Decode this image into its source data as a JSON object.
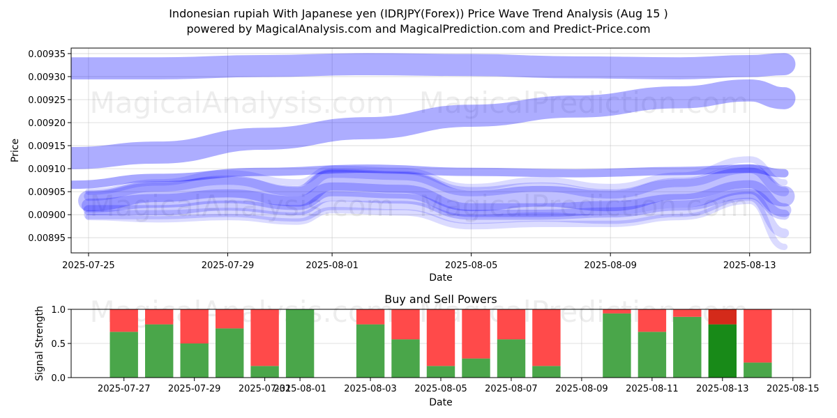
{
  "title_line1": "Indonesian rupiah With Japanese yen (IDRJPY(Forex)) Price Wave Trend Analysis (Aug 15 )",
  "title_line2": "powered by MagicalAnalysis.com and MagicalPrediction.com and Predict-Price.com",
  "watermarks": [
    "MagicalAnalysis.com",
    "MagicalPrediction.com"
  ],
  "colors": {
    "wave": "#0000ff",
    "buy": "#4aa64a",
    "sell": "#ff4a4a",
    "buy_strong": "#188a18",
    "sell_strong": "#d42a1a"
  },
  "chart_data": [
    {
      "type": "area",
      "title": "",
      "xlabel": "Date",
      "ylabel": "Price",
      "xlim": [
        "2025-07-24T12:00",
        "2025-08-14T18:00"
      ],
      "ylim": [
        0.008917,
        0.009362
      ],
      "x_ticks": [
        "2025-07-25",
        "2025-07-29",
        "2025-08-01",
        "2025-08-05",
        "2025-08-09",
        "2025-08-13"
      ],
      "y_ticks": [
        0.00895,
        0.009,
        0.00905,
        0.0091,
        0.00915,
        0.0092,
        0.00925,
        0.0093,
        0.00935
      ],
      "grid": true,
      "bands": [
        {
          "x": [
            "2025-07-24T12:00",
            "2025-07-27",
            "2025-07-30",
            "2025-08-02",
            "2025-08-05",
            "2025-08-08",
            "2025-08-11",
            "2025-08-13",
            "2025-08-14T00:00"
          ],
          "y": [
            0.009318,
            0.009318,
            0.009323,
            0.009327,
            0.009325,
            0.00932,
            0.009318,
            0.009323,
            0.009327
          ],
          "width": 4.8e-05,
          "opacity": 0.32
        },
        {
          "x": [
            "2025-07-24T12:00",
            "2025-07-27",
            "2025-07-30",
            "2025-08-02",
            "2025-08-05",
            "2025-08-08",
            "2025-08-11",
            "2025-08-13",
            "2025-08-14T00:00"
          ],
          "y": [
            0.009123,
            0.009135,
            0.009165,
            0.009188,
            0.009215,
            0.009235,
            0.009255,
            0.00927,
            0.009253
          ],
          "width": 4.8e-05,
          "opacity": 0.32
        },
        {
          "x": [
            "2025-07-24T12:00",
            "2025-07-27",
            "2025-07-30",
            "2025-08-02",
            "2025-08-05",
            "2025-08-08",
            "2025-08-11",
            "2025-08-13",
            "2025-08-14T00:00"
          ],
          "y": [
            0.009065,
            0.00908,
            0.009093,
            0.0091,
            0.009093,
            0.00909,
            0.009095,
            0.0091,
            0.00909
          ],
          "width": 1.8e-05,
          "opacity": 0.34
        },
        {
          "x": [
            "2025-07-25",
            "2025-07-27",
            "2025-07-29",
            "2025-07-31",
            "2025-08-01",
            "2025-08-03",
            "2025-08-05",
            "2025-08-07",
            "2025-08-09",
            "2025-08-11",
            "2025-08-13",
            "2025-08-14T00:00"
          ],
          "y": [
            0.00903,
            0.00905,
            0.00906,
            0.00904,
            0.009075,
            0.00907,
            0.00903,
            0.00904,
            0.00903,
            0.009055,
            0.00908,
            0.00904
          ],
          "width": 4.5e-05,
          "opacity": 0.25
        },
        {
          "x": [
            "2025-07-25",
            "2025-07-27",
            "2025-07-29",
            "2025-07-31",
            "2025-08-01",
            "2025-08-03",
            "2025-08-05",
            "2025-08-07",
            "2025-08-09",
            "2025-08-11",
            "2025-08-13",
            "2025-08-14T00:00"
          ],
          "y": [
            0.00902,
            0.00903,
            0.00904,
            0.009025,
            0.009055,
            0.00905,
            0.00901,
            0.00901,
            0.009015,
            0.00903,
            0.00906,
            0.00901
          ],
          "width": 3e-05,
          "opacity": 0.22
        },
        {
          "x": [
            "2025-07-25",
            "2025-07-27",
            "2025-07-29",
            "2025-07-31",
            "2025-08-01",
            "2025-08-03",
            "2025-08-05",
            "2025-08-07",
            "2025-08-09",
            "2025-08-11",
            "2025-08-13",
            "2025-08-14T00:00"
          ],
          "y": [
            0.00901,
            0.00901,
            0.00902,
            0.00901,
            0.00904,
            0.009035,
            0.009,
            0.009,
            0.009005,
            0.00902,
            0.009045,
            0.009
          ],
          "width": 2.2e-05,
          "opacity": 0.2
        },
        {
          "x": [
            "2025-07-25",
            "2025-07-27",
            "2025-07-29",
            "2025-07-31",
            "2025-08-01",
            "2025-08-03",
            "2025-08-05",
            "2025-08-07",
            "2025-08-09",
            "2025-08-11",
            "2025-08-13",
            "2025-08-14T00:00"
          ],
          "y": [
            0.00904,
            0.00906,
            0.009075,
            0.00905,
            0.00909,
            0.009085,
            0.00905,
            0.00906,
            0.009045,
            0.00907,
            0.0091,
            0.00905
          ],
          "width": 2e-05,
          "opacity": 0.18
        },
        {
          "x": [
            "2025-07-25",
            "2025-07-27",
            "2025-07-29",
            "2025-07-31",
            "2025-08-01",
            "2025-08-03",
            "2025-08-05",
            "2025-08-07",
            "2025-08-09",
            "2025-08-11",
            "2025-08-13",
            "2025-08-14T00:00"
          ],
          "y": [
            0.009,
            0.009,
            0.009005,
            0.008995,
            0.00902,
            0.00902,
            0.00899,
            0.008995,
            0.00899,
            0.009005,
            0.00904,
            0.00896
          ],
          "width": 2e-05,
          "opacity": 0.16
        },
        {
          "x": [
            "2025-07-25",
            "2025-07-27",
            "2025-07-29",
            "2025-07-31",
            "2025-08-01",
            "2025-08-03",
            "2025-08-05",
            "2025-08-07",
            "2025-08-09",
            "2025-08-11",
            "2025-08-13",
            "2025-08-14T00:00"
          ],
          "y": [
            0.00905,
            0.00907,
            0.00909,
            0.00907,
            0.0091,
            0.009095,
            0.00906,
            0.009075,
            0.00906,
            0.009085,
            0.00912,
            0.00907
          ],
          "width": 1.4e-05,
          "opacity": 0.14
        },
        {
          "x": [
            "2025-07-25",
            "2025-07-27",
            "2025-07-29",
            "2025-07-31",
            "2025-08-01",
            "2025-08-03",
            "2025-08-05",
            "2025-08-07",
            "2025-08-09",
            "2025-08-11",
            "2025-08-13",
            "2025-08-14T00:00"
          ],
          "y": [
            0.008995,
            0.00899,
            0.008995,
            0.008985,
            0.00901,
            0.009005,
            0.008975,
            0.00898,
            0.00898,
            0.008995,
            0.00903,
            0.00893
          ],
          "width": 1.4e-05,
          "opacity": 0.14
        }
      ]
    },
    {
      "type": "bar",
      "title": "Buy and Sell Powers",
      "xlabel": "Date",
      "ylabel": "Signal Strength",
      "xlim": [
        "2025-07-25T12:00",
        "2025-08-15T12:00"
      ],
      "ylim": [
        0,
        1
      ],
      "x_ticks": [
        "2025-07-27",
        "2025-07-29",
        "2025-07-31",
        "2025-08-01",
        "2025-08-03",
        "2025-08-05",
        "2025-08-07",
        "2025-08-09",
        "2025-08-11",
        "2025-08-13",
        "2025-08-15"
      ],
      "y_ticks": [
        "0.0",
        "0.5",
        "1.0"
      ],
      "grid": true,
      "series": [
        {
          "name": "buy",
          "values": [
            0.67,
            0.78,
            0.5,
            0.72,
            0.17,
            1.0,
            0.78,
            0.56,
            0.17,
            0.28,
            0.56,
            0.17,
            0.94,
            0.67,
            0.89,
            0.78,
            0.22
          ]
        },
        {
          "name": "sell",
          "values": [
            0.33,
            0.22,
            0.5,
            0.28,
            0.83,
            0.0,
            0.22,
            0.44,
            0.83,
            0.72,
            0.44,
            0.83,
            0.06,
            0.33,
            0.11,
            0.22,
            0.78
          ]
        }
      ],
      "categories": [
        "2025-07-27",
        "2025-07-28",
        "2025-07-29",
        "2025-07-30",
        "2025-07-31",
        "2025-08-01",
        "2025-08-03",
        "2025-08-04",
        "2025-08-05",
        "2025-08-06",
        "2025-08-07",
        "2025-08-08",
        "2025-08-10",
        "2025-08-11",
        "2025-08-12",
        "2025-08-13",
        "2025-08-14"
      ],
      "highlight": "2025-08-13"
    }
  ]
}
